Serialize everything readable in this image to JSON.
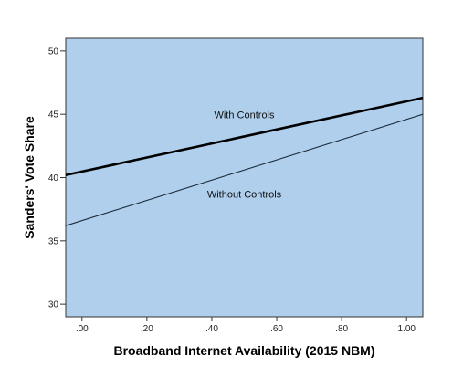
{
  "chart_data": {
    "type": "line",
    "xlabel": "Broadband Internet Availability (2015 NBM)",
    "ylabel": "Sanders' Vote Share",
    "xlim": [
      -0.05,
      1.05
    ],
    "ylim": [
      0.29,
      0.51
    ],
    "x_ticks": [
      0.0,
      0.2,
      0.4,
      0.6,
      0.8,
      1.0
    ],
    "x_tick_labels": [
      ".00",
      ".20",
      ".40",
      ".60",
      ".80",
      "1.00"
    ],
    "y_ticks": [
      0.3,
      0.35,
      0.4,
      0.45,
      0.5
    ],
    "y_tick_labels": [
      ".30",
      ".35",
      ".40",
      ".45",
      ".50"
    ],
    "grid": false,
    "plot_background": "#afcfec",
    "series": [
      {
        "name": "With Controls",
        "x": [
          -0.05,
          1.05
        ],
        "y": [
          0.402,
          0.463
        ],
        "color": "#000000",
        "width": "thick"
      },
      {
        "name": "Without Controls",
        "x": [
          -0.05,
          1.05
        ],
        "y": [
          0.362,
          0.45
        ],
        "color": "#1a2a3a",
        "width": "thin"
      }
    ],
    "annotations": [
      {
        "text": "With Controls",
        "x": 0.5,
        "y": 0.447
      },
      {
        "text": "Without Controls",
        "x": 0.5,
        "y": 0.384
      }
    ]
  }
}
